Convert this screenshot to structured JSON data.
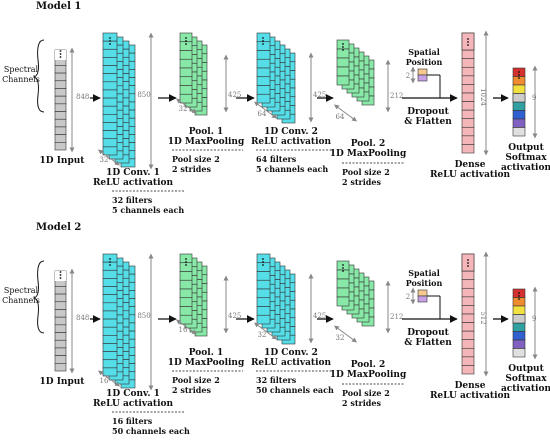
{
  "colors": {
    "input": "#c8c8c8",
    "conv": "#55dde8",
    "pool": "#88e8a8",
    "dense": "#f4b6b8",
    "spatial_top": "#f5c990",
    "spatial_bottom": "#c8a0e6",
    "output": [
      "#d43030",
      "#f08c30",
      "#f0e040",
      "#40b040",
      "#30a0a0",
      "#3060d0",
      "#8060c0",
      "#e0e0e0"
    ]
  },
  "models": [
    {
      "title": "Model 1",
      "input": {
        "side_label_1": "Spectral",
        "side_label_2": "Channels",
        "dim": "848",
        "name": "1D Input"
      },
      "conv1": {
        "dim_h": "850",
        "dim_w": "32",
        "name1": "1D Conv. 1",
        "name2": "ReLU activation",
        "detail1": "32 filters",
        "detail2": "5 channels each"
      },
      "pool1": {
        "dim_h": "425",
        "dim_w": "32",
        "name1": "Pool. 1",
        "name2": "1D MaxPooling",
        "detail1": "Pool size 2",
        "detail2": "2 strides"
      },
      "conv2": {
        "dim_h": "425",
        "dim_w": "64",
        "name1": "1D Conv. 2",
        "name2": "ReLU activation",
        "detail1": "64 filters",
        "detail2": "5 channels each"
      },
      "pool2": {
        "dim_h": "212",
        "dim_w": "64",
        "name1": "Pool. 2",
        "name2": "1D MaxPooling",
        "detail1": "Pool size 2",
        "detail2": "2 strides"
      },
      "spatial": {
        "label1": "Spatial",
        "label2": "Position",
        "dim": "2"
      },
      "dropout": {
        "label1": "Dropout",
        "label2": "& Flatten"
      },
      "dense": {
        "dim": "1024",
        "name1": "Dense",
        "name2": "ReLU activation"
      },
      "output": {
        "dim": "9",
        "name1": "Output",
        "name2": "Softmax",
        "name3": "activation"
      }
    },
    {
      "title": "Model 2",
      "input": {
        "side_label_1": "Spectral",
        "side_label_2": "Channels",
        "dim": "848",
        "name": "1D Input"
      },
      "conv1": {
        "dim_h": "850",
        "dim_w": "16",
        "name1": "1D Conv. 1",
        "name2": "ReLU activation",
        "detail1": "16 filters",
        "detail2": "50 channels each"
      },
      "pool1": {
        "dim_h": "425",
        "dim_w": "16",
        "name1": "Pool. 1",
        "name2": "1D MaxPooling",
        "detail1": "Pool size 2",
        "detail2": "2 strides"
      },
      "conv2": {
        "dim_h": "425",
        "dim_w": "32",
        "name1": "1D Conv. 2",
        "name2": "ReLU activation",
        "detail1": "32 filters",
        "detail2": "50 channels each"
      },
      "pool2": {
        "dim_h": "212",
        "dim_w": "32",
        "name1": "Pool. 2",
        "name2": "1D MaxPooling",
        "detail1": "Pool size 2",
        "detail2": "2 strides"
      },
      "spatial": {
        "label1": "Spatial",
        "label2": "Position",
        "dim": "2"
      },
      "dropout": {
        "label1": "Dropout",
        "label2": "& Flatten"
      },
      "dense": {
        "dim": "512",
        "name1": "Dense",
        "name2": "ReLU activation"
      },
      "output": {
        "dim": "9",
        "name1": "Output",
        "name2": "Softmax",
        "name3": "activation"
      }
    }
  ]
}
